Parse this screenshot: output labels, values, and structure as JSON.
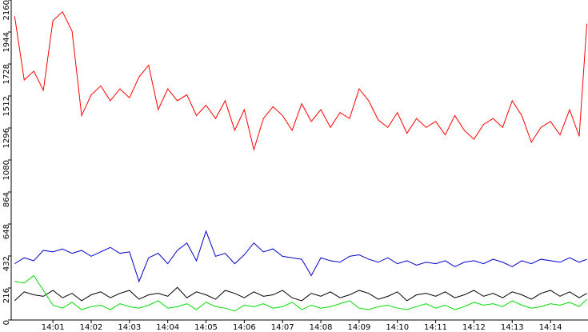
{
  "chart_data": {
    "type": "line",
    "x": [
      0,
      0.25,
      0.5,
      0.75,
      1,
      1.25,
      1.5,
      1.75,
      2,
      2.25,
      2.5,
      2.75,
      3,
      3.25,
      3.5,
      3.75,
      4,
      4.25,
      4.5,
      4.75,
      5,
      5.25,
      5.5,
      5.75,
      6,
      6.25,
      6.5,
      6.75,
      7,
      7.25,
      7.5,
      7.75,
      8,
      8.25,
      8.5,
      8.75,
      9,
      9.25,
      9.5,
      9.75,
      10,
      10.25,
      10.5,
      10.75,
      11,
      11.25,
      11.5,
      11.75,
      12,
      12.25,
      12.5,
      12.75,
      13,
      13.25,
      13.5,
      13.75,
      14,
      14.25,
      14.5,
      14.75,
      14.95
    ],
    "series": [
      {
        "color": "#ff0000",
        "values": [
          2050,
          1620,
          1680,
          1550,
          2020,
          2080,
          1950,
          1380,
          1520,
          1580,
          1480,
          1560,
          1500,
          1640,
          1720,
          1420,
          1560,
          1480,
          1520,
          1380,
          1450,
          1360,
          1480,
          1280,
          1420,
          1150,
          1360,
          1440,
          1380,
          1280,
          1460,
          1340,
          1420,
          1300,
          1400,
          1360,
          1560,
          1480,
          1350,
          1300,
          1400,
          1260,
          1360,
          1300,
          1340,
          1250,
          1380,
          1280,
          1220,
          1320,
          1360,
          1300,
          1480,
          1380,
          1200,
          1300,
          1340,
          1250,
          1420,
          1240,
          2000
        ]
      },
      {
        "color": "#0000cc",
        "values": [
          380,
          420,
          400,
          470,
          460,
          480,
          450,
          470,
          430,
          460,
          490,
          450,
          460,
          260,
          420,
          450,
          380,
          470,
          520,
          400,
          600,
          430,
          450,
          380,
          440,
          520,
          460,
          480,
          430,
          420,
          410,
          300,
          420,
          400,
          390,
          430,
          440,
          410,
          390,
          420,
          380,
          400,
          370,
          390,
          380,
          400,
          360,
          390,
          400,
          380,
          410,
          390,
          360,
          400,
          380,
          410,
          400,
          390,
          420,
          390,
          410
        ]
      },
      {
        "color": "#000000",
        "values": [
          130,
          190,
          170,
          160,
          200,
          150,
          180,
          130,
          170,
          190,
          150,
          180,
          200,
          140,
          170,
          180,
          160,
          220,
          150,
          190,
          170,
          140,
          200,
          180,
          150,
          190,
          160,
          170,
          200,
          150,
          130,
          180,
          160,
          190,
          150,
          170,
          200,
          180,
          140,
          160,
          190,
          130,
          170,
          180,
          160,
          190,
          150,
          170,
          200,
          160,
          180,
          150,
          190,
          170,
          140,
          180,
          200,
          160,
          190,
          150,
          180
        ]
      },
      {
        "color": "#00dd00",
        "values": [
          260,
          250,
          300,
          200,
          100,
          80,
          120,
          70,
          90,
          100,
          70,
          110,
          90,
          80,
          100,
          130,
          80,
          90,
          110,
          70,
          120,
          90,
          80,
          60,
          100,
          90,
          110,
          80,
          90,
          120,
          70,
          100,
          80,
          90,
          110,
          130,
          80,
          70,
          90,
          100,
          80,
          70,
          90,
          110,
          80,
          100,
          70,
          90,
          120,
          100,
          110,
          90,
          130,
          100,
          80,
          90,
          110,
          100,
          120,
          90,
          140
        ]
      }
    ],
    "xlim": [
      -0.09,
      14.98
    ],
    "ylim": [
      0,
      2160
    ],
    "yticks": [
      0,
      216,
      432,
      648,
      864,
      1080,
      1296,
      1512,
      1728,
      1944,
      2160
    ],
    "xticks": [
      {
        "value": 1,
        "label": "14:01"
      },
      {
        "value": 2,
        "label": "14:02"
      },
      {
        "value": 3,
        "label": "14:03"
      },
      {
        "value": 4,
        "label": "14:04"
      },
      {
        "value": 5,
        "label": "14:05"
      },
      {
        "value": 6,
        "label": "14:06"
      },
      {
        "value": 7,
        "label": "14:07"
      },
      {
        "value": 8,
        "label": "14:08"
      },
      {
        "value": 9,
        "label": "14:09"
      },
      {
        "value": 10,
        "label": "14:10"
      },
      {
        "value": 11,
        "label": "14:11"
      },
      {
        "value": 12,
        "label": "14:12"
      },
      {
        "value": 13,
        "label": "14:13"
      },
      {
        "value": 14,
        "label": "14:14"
      }
    ]
  }
}
